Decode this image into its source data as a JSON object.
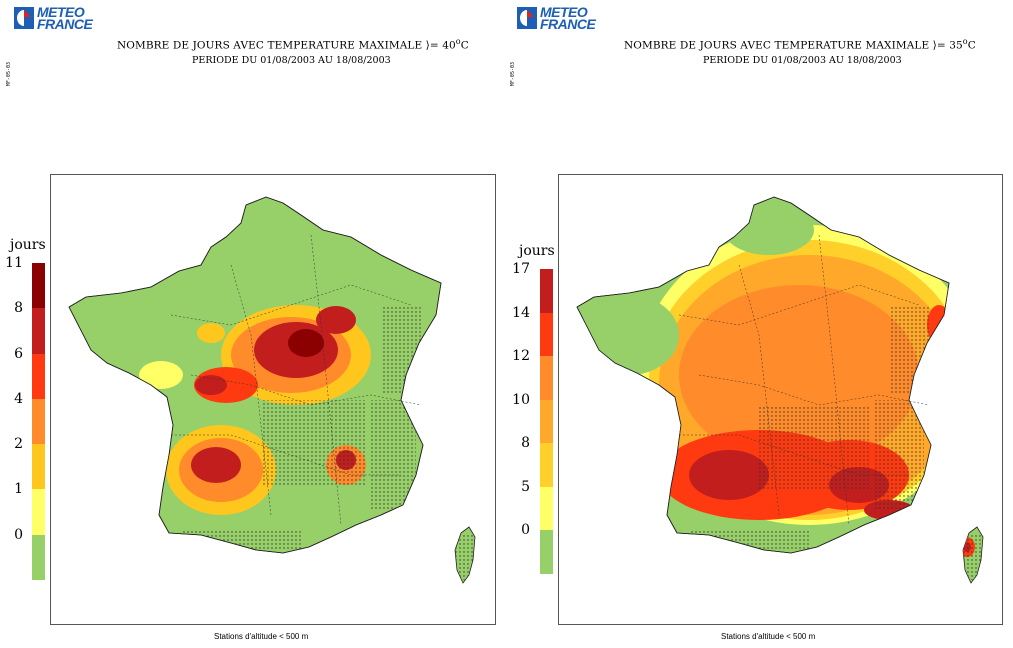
{
  "brand": "METEO FRANCE",
  "brand_line1": "METEO",
  "brand_line2": "FRANCE",
  "brand_color": "#1d5fb4",
  "side_code": "MF-05-03",
  "maps": [
    {
      "title_prefix": "NOMBRE DE JOURS AVEC TEMPERATURE MAXIMALE ",
      "title_symbol": "⟩=",
      "title_value": " 40",
      "title_unit": "C",
      "subtitle": "PERIODE DU 01/08/2003 AU 18/08/2003",
      "legend_title": "jours",
      "legend_ticks": [
        "11",
        "8",
        "6",
        "4",
        "2",
        "1",
        "0"
      ],
      "legend_colors": [
        "#8b0000",
        "#c21e1e",
        "#ff3a10",
        "#ff8b2b",
        "#ffc61e",
        "#ffff66",
        "#97cf69"
      ],
      "footer": "Stations d'altitude < 500 m"
    },
    {
      "title_prefix": "NOMBRE DE JOURS AVEC TEMPERATURE MAXIMALE ",
      "title_symbol": "⟩=",
      "title_value": " 35",
      "title_unit": "C",
      "subtitle": "PERIODE DU 01/08/2003 AU 18/08/2003",
      "legend_title": "jours",
      "legend_ticks": [
        "17",
        "14",
        "12",
        "10",
        "8",
        "5",
        "0"
      ],
      "legend_colors": [
        "#c21e1e",
        "#ff3a10",
        "#ff8b2b",
        "#ffa82a",
        "#ffd02a",
        "#ffff66",
        "#97cf69"
      ],
      "footer": "Stations d'altitude < 500 m"
    }
  ]
}
